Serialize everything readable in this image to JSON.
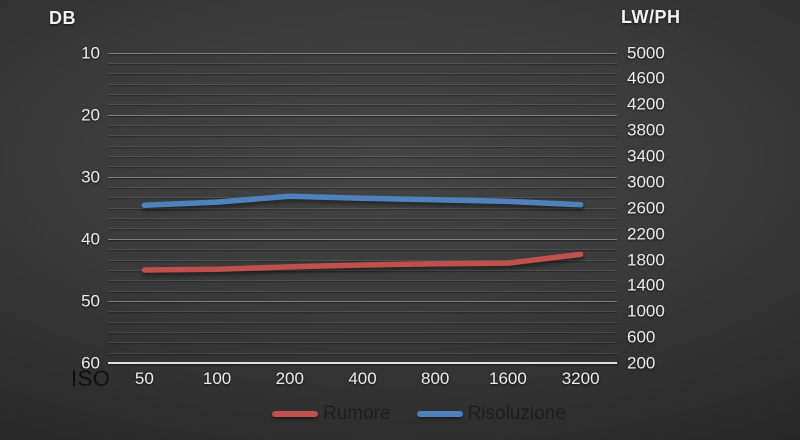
{
  "chart_data": {
    "type": "line",
    "title": "",
    "x_axis": {
      "title": "ISO",
      "labels": [
        "50",
        "100",
        "200",
        "400",
        "800",
        "1600",
        "3200"
      ]
    },
    "left_axis": {
      "title": "DB",
      "ticks": [
        10,
        20,
        30,
        40,
        50,
        60
      ],
      "min": 10,
      "max": 60,
      "inverted_display": "10 at top, 60 at bottom"
    },
    "right_axis": {
      "title": "LW/PH",
      "ticks": [
        5000,
        4600,
        4200,
        3800,
        3400,
        3000,
        2600,
        2200,
        1800,
        1400,
        1000,
        600,
        200
      ],
      "min": 200,
      "max": 5000
    },
    "series": [
      {
        "name": "Rumore",
        "axis": "left",
        "color": "#C0504D",
        "values": [
          45.1,
          45.0,
          44.6,
          44.3,
          44.1,
          44.0,
          42.6
        ]
      },
      {
        "name": "Risoluzione",
        "axis": "right",
        "color": "#4F81BD",
        "values": [
          2630,
          2680,
          2770,
          2740,
          2715,
          2690,
          2640
        ]
      }
    ],
    "legend": {
      "position": "bottom",
      "entries": [
        "Rumore",
        "Risoluzione"
      ]
    },
    "grid": {
      "major": true,
      "minor": true
    },
    "background_color": "#333333"
  }
}
